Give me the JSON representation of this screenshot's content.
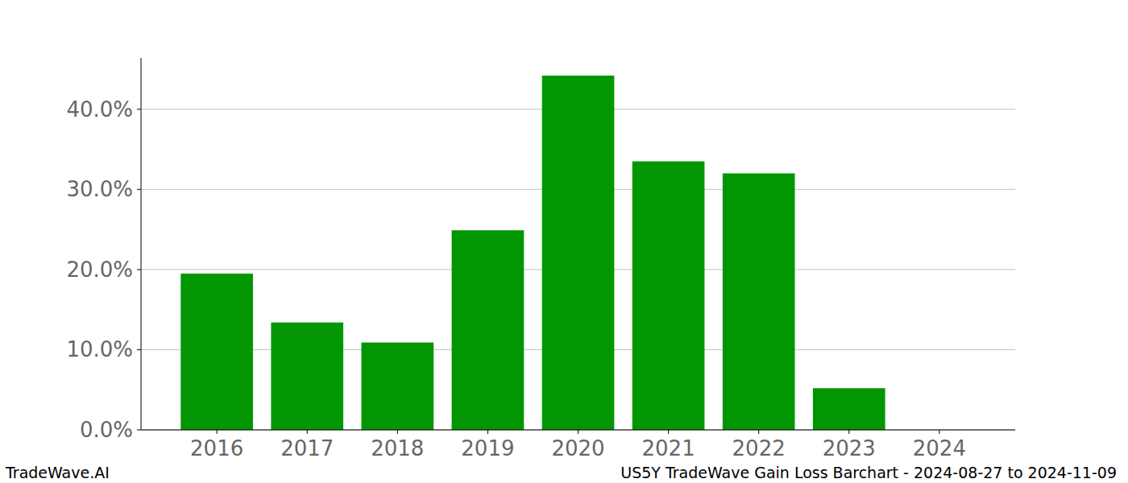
{
  "chart_data": {
    "type": "bar",
    "title": "US5Y TradeWave Gain Loss Barchart - 2024-08-27 to 2024-11-09",
    "source": "TradeWave.AI",
    "categories": [
      "2016",
      "2017",
      "2018",
      "2019",
      "2020",
      "2021",
      "2022",
      "2023",
      "2024"
    ],
    "values": [
      19.5,
      13.4,
      10.9,
      24.9,
      44.2,
      33.5,
      32.0,
      5.2,
      0
    ],
    "color": "#029702",
    "ylim": [
      0,
      46.4
    ],
    "yticks": [
      {
        "value": 0,
        "label": "0.0%"
      },
      {
        "value": 10,
        "label": "10.0%"
      },
      {
        "value": 20,
        "label": "20.0%"
      },
      {
        "value": 30,
        "label": "30.0%"
      },
      {
        "value": 40,
        "label": "40.0%"
      }
    ],
    "grid": true
  }
}
